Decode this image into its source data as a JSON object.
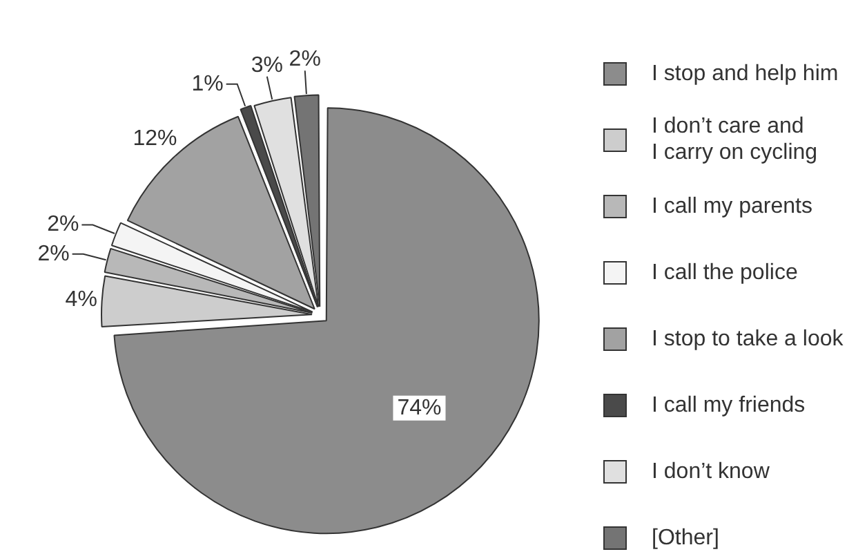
{
  "chart_data": {
    "type": "pie",
    "categories": [
      "I stop and help him",
      "I don’t care and\nI carry on cycling",
      "I call my parents",
      "I call the police",
      "I stop to take a look",
      "I call my friends",
      "I don’t know",
      "[Other]"
    ],
    "values": [
      74,
      4,
      2,
      2,
      12,
      1,
      3,
      2
    ],
    "colors": [
      "#8c8c8c",
      "#cdcdcd",
      "#b8b8b8",
      "#f4f4f4",
      "#a2a2a2",
      "#4a4a4a",
      "#e0e0e0",
      "#747474"
    ],
    "value_labels": [
      "74%",
      "4%",
      "2%",
      "2%",
      "12%",
      "1%",
      "3%",
      "2%"
    ],
    "legend": "right"
  }
}
